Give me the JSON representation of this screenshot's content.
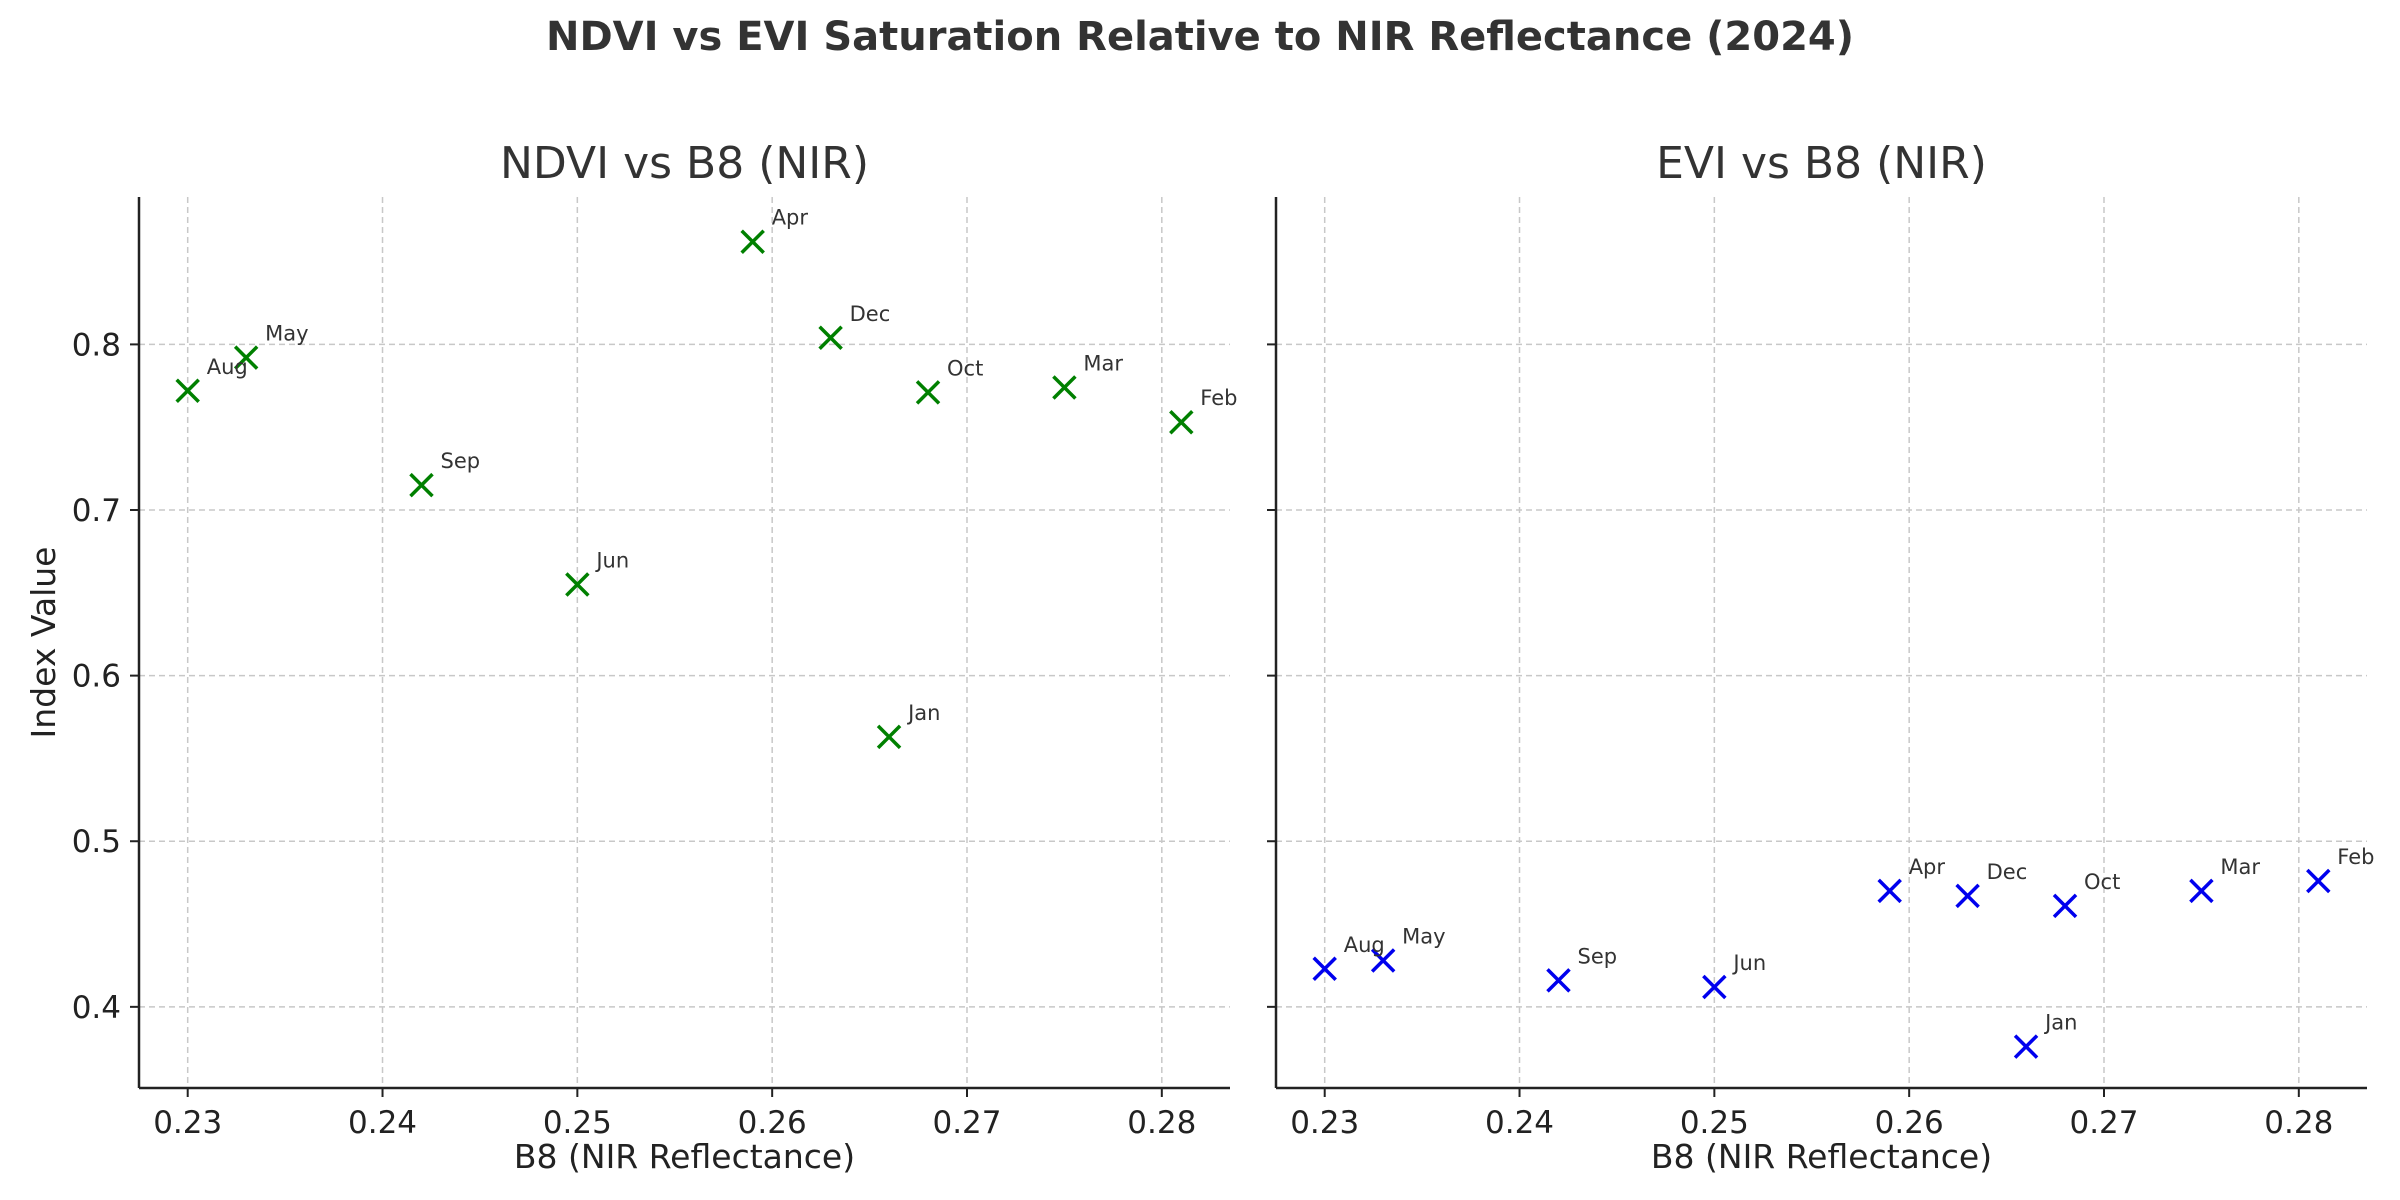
{
  "figure": {
    "title": "NDVI vs EVI Saturation Relative to NIR Reflectance (2024)"
  },
  "chart_data": [
    {
      "type": "scatter",
      "title": "NDVI vs B8 (NIR)",
      "xlabel": "B8 (NIR Reflectance)",
      "ylabel": "Index Value",
      "xlim": [
        0.2275,
        0.2835
      ],
      "ylim": [
        0.351,
        0.889
      ],
      "xticks": [
        0.23,
        0.24,
        0.25,
        0.26,
        0.27,
        0.28
      ],
      "xtick_labels": [
        "0.23",
        "0.24",
        "0.25",
        "0.26",
        "0.27",
        "0.28"
      ],
      "yticks": [
        0.4,
        0.5,
        0.6,
        0.7,
        0.8
      ],
      "ytick_labels": [
        "0.4",
        "0.5",
        "0.6",
        "0.7",
        "0.8"
      ],
      "grid": true,
      "marker": "x",
      "color": "#008000",
      "points": [
        {
          "label": "Jan",
          "x": 0.266,
          "y": 0.563
        },
        {
          "label": "Feb",
          "x": 0.281,
          "y": 0.753
        },
        {
          "label": "Mar",
          "x": 0.275,
          "y": 0.774
        },
        {
          "label": "Apr",
          "x": 0.259,
          "y": 0.862
        },
        {
          "label": "May",
          "x": 0.233,
          "y": 0.792
        },
        {
          "label": "Jun",
          "x": 0.25,
          "y": 0.655
        },
        {
          "label": "Aug",
          "x": 0.23,
          "y": 0.772
        },
        {
          "label": "Sep",
          "x": 0.242,
          "y": 0.715
        },
        {
          "label": "Oct",
          "x": 0.268,
          "y": 0.771
        },
        {
          "label": "Dec",
          "x": 0.263,
          "y": 0.804
        }
      ]
    },
    {
      "type": "scatter",
      "title": "EVI vs B8 (NIR)",
      "xlabel": "B8 (NIR Reflectance)",
      "ylabel": "",
      "xlim": [
        0.2275,
        0.2835
      ],
      "ylim": [
        0.351,
        0.889
      ],
      "xticks": [
        0.23,
        0.24,
        0.25,
        0.26,
        0.27,
        0.28
      ],
      "xtick_labels": [
        "0.23",
        "0.24",
        "0.25",
        "0.26",
        "0.27",
        "0.28"
      ],
      "yticks": [
        0.4,
        0.5,
        0.6,
        0.7,
        0.8
      ],
      "ytick_labels": [],
      "grid": true,
      "marker": "x",
      "color": "#0000ee",
      "points": [
        {
          "label": "Jan",
          "x": 0.266,
          "y": 0.376
        },
        {
          "label": "Feb",
          "x": 0.281,
          "y": 0.476
        },
        {
          "label": "Mar",
          "x": 0.275,
          "y": 0.47
        },
        {
          "label": "Apr",
          "x": 0.259,
          "y": 0.47
        },
        {
          "label": "May",
          "x": 0.233,
          "y": 0.428
        },
        {
          "label": "Jun",
          "x": 0.25,
          "y": 0.412
        },
        {
          "label": "Aug",
          "x": 0.23,
          "y": 0.423
        },
        {
          "label": "Sep",
          "x": 0.242,
          "y": 0.416
        },
        {
          "label": "Oct",
          "x": 0.268,
          "y": 0.461
        },
        {
          "label": "Dec",
          "x": 0.263,
          "y": 0.467
        }
      ]
    }
  ]
}
